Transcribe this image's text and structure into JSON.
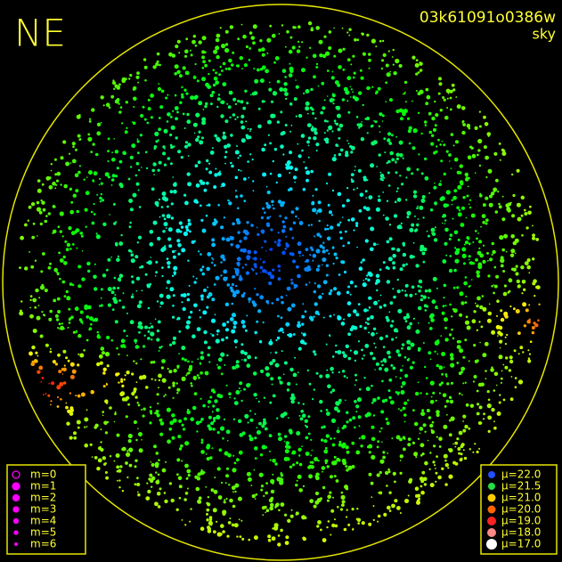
{
  "header": {
    "direction": "NE",
    "frame": "03k61091o0386w",
    "subtitle": "sky"
  },
  "legend_m": [
    "m=0",
    "m=1",
    "m=2",
    "m=3",
    "m=4",
    "m=5",
    "m=6"
  ],
  "legend_mu": [
    "μ=22.0",
    "μ=21.5",
    "μ=21.0",
    "μ=20.0",
    "μ=19.0",
    "μ=18.0",
    "μ=17.0"
  ]
}
